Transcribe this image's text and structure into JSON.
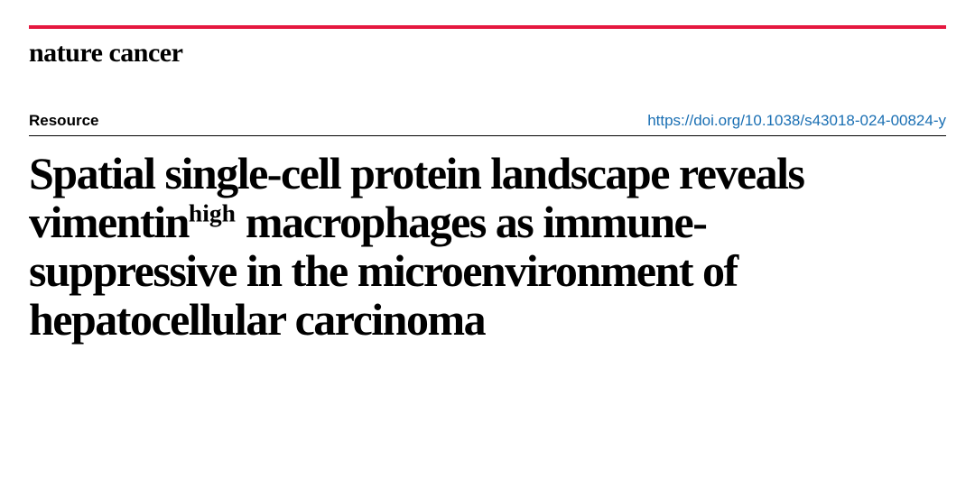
{
  "colors": {
    "rule": "#e5173f",
    "link": "#1a6fb3",
    "text": "#000000",
    "background": "#ffffff"
  },
  "journal": {
    "name": "nature cancer",
    "fontsize_pt": 22,
    "weight": 700
  },
  "meta": {
    "article_type": "Resource",
    "doi_url": "https://doi.org/10.1038/s43018-024-00824-y",
    "type_fontsize_pt": 12,
    "doi_fontsize_pt": 12
  },
  "title": {
    "line1_a": "Spatial single-cell protein landscape reveals vimentin",
    "sup": "high",
    "line1_b": " macrophages as immune-suppressive in the microenvironment of hepatocellular carcinoma",
    "fontsize_pt": 37,
    "weight": 900
  }
}
